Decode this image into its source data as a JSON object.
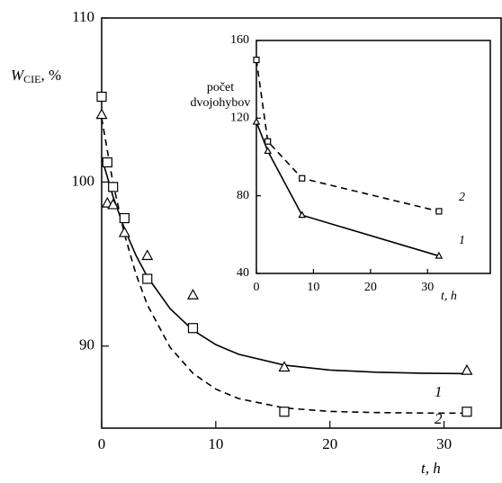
{
  "chart_data": [
    {
      "type": "scatter",
      "ylabel": [
        "W",
        "CIE",
        ", %"
      ],
      "xlabel": "t, h",
      "xlim": [
        0,
        35
      ],
      "ylim": [
        85,
        110
      ],
      "xticks": [
        0,
        10,
        20,
        30
      ],
      "yticks": [
        90,
        100,
        110
      ],
      "color": "#000000",
      "series": [
        {
          "marker": "triangle",
          "x": [
            0,
            0.5,
            1,
            2,
            4,
            8,
            16,
            32
          ],
          "values": [
            104.1,
            98.7,
            98.6,
            96.9,
            95.5,
            93.1,
            88.7,
            88.5
          ]
        },
        {
          "marker": "square",
          "x": [
            0,
            0.5,
            1,
            2,
            4,
            8,
            16,
            32
          ],
          "values": [
            105.2,
            101.2,
            99.7,
            97.8,
            94.1,
            91.1,
            86.0,
            86.0
          ]
        }
      ],
      "fits": [
        {
          "name": "1",
          "dashed": false,
          "x": [
            0,
            1,
            2,
            3,
            4,
            6,
            8,
            10,
            12,
            16,
            20,
            24,
            28,
            32
          ],
          "values": [
            101.5,
            99.11,
            97.15,
            95.54,
            94.23,
            92.28,
            90.97,
            90.09,
            89.5,
            88.84,
            88.54,
            88.41,
            88.35,
            88.32
          ]
        },
        {
          "name": "2",
          "dashed": true,
          "x": [
            0,
            1,
            2,
            3,
            4,
            6,
            8,
            10,
            12,
            16,
            20,
            24,
            28,
            32
          ],
          "values": [
            103.9,
            99.92,
            96.82,
            94.4,
            92.52,
            89.92,
            88.34,
            87.38,
            86.8,
            86.23,
            86.02,
            85.95,
            85.92,
            85.91
          ]
        }
      ]
    },
    {
      "type": "line",
      "ylabel": [
        "počet",
        "dvojohybov"
      ],
      "xlabel": "t, h",
      "xlim": [
        0,
        41
      ],
      "ylim": [
        40,
        160
      ],
      "xticks": [
        0,
        10,
        20,
        30
      ],
      "yticks": [
        40,
        80,
        120,
        160
      ],
      "color": "#000000",
      "series": [
        {
          "name": "1",
          "marker": "triangle",
          "dashed": false,
          "x": [
            0,
            2,
            8,
            32
          ],
          "values": [
            118,
            103,
            70,
            49
          ]
        },
        {
          "name": "2",
          "marker": "square",
          "dashed": true,
          "x": [
            0,
            2,
            8,
            32
          ],
          "values": [
            150,
            108,
            89,
            72
          ]
        }
      ]
    }
  ]
}
